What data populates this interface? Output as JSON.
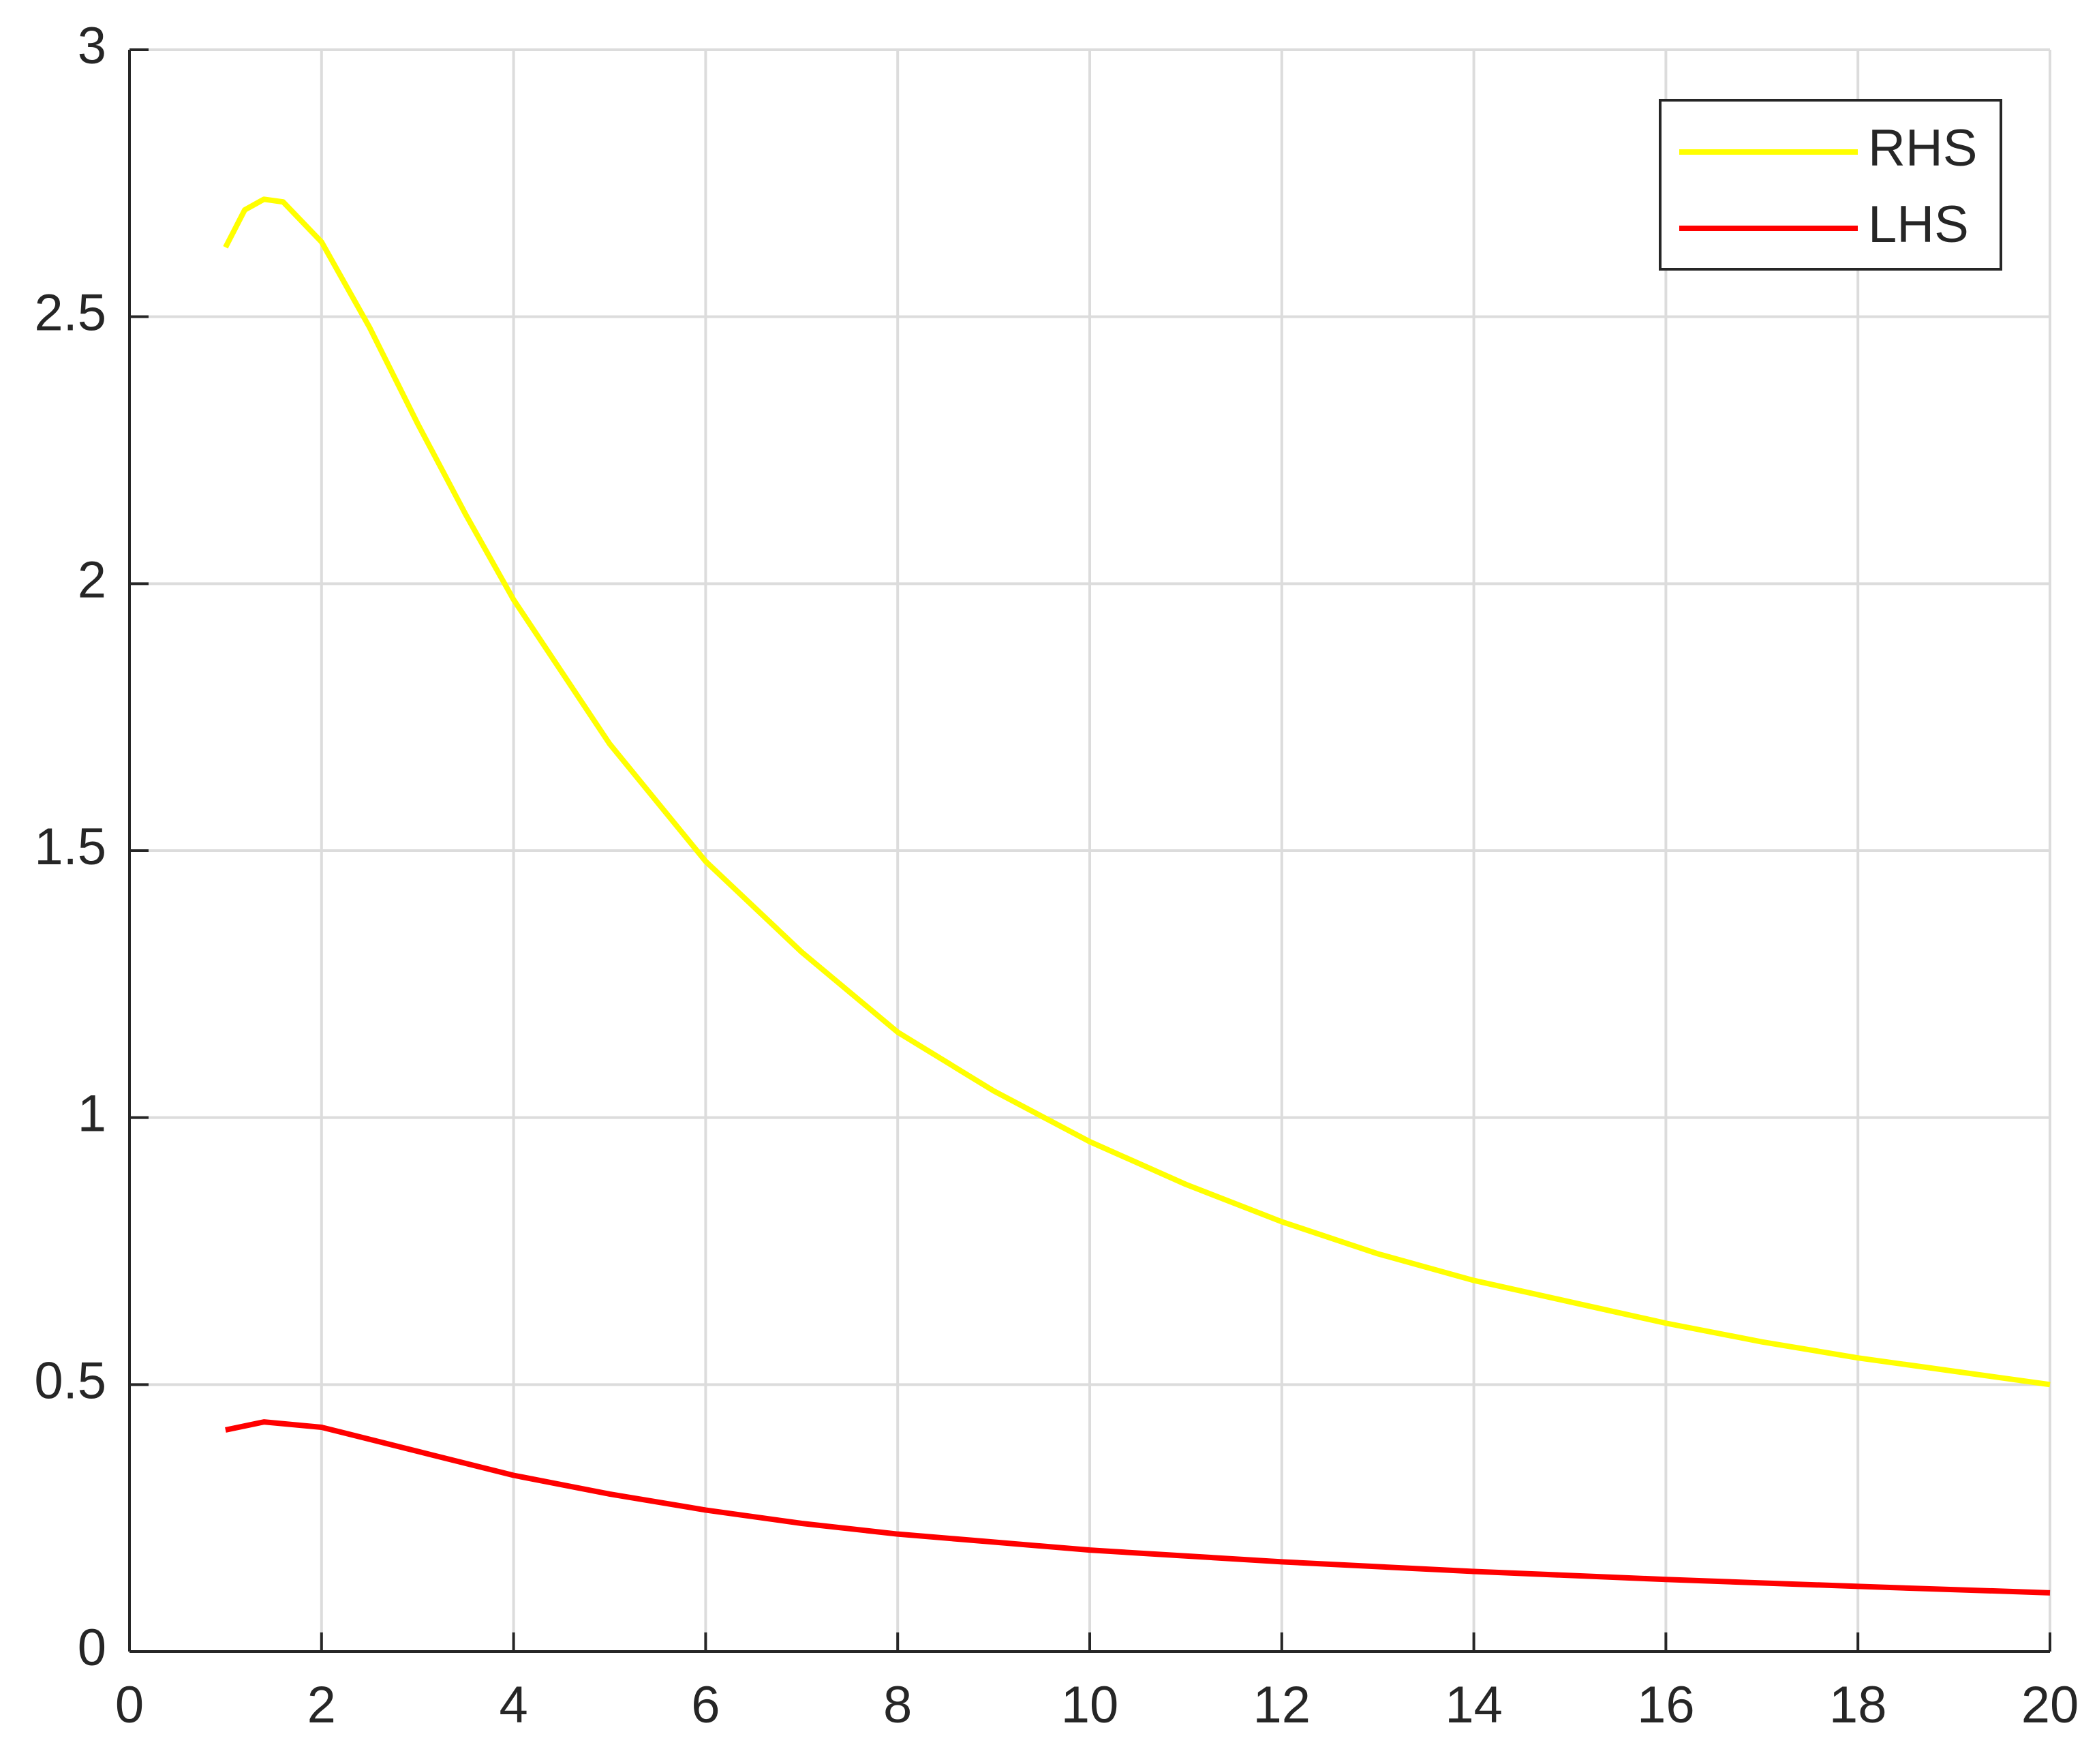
{
  "chart_data": {
    "type": "line",
    "series": [
      {
        "name": "RHS",
        "color": "#ffff00",
        "x": [
          1,
          1.2,
          1.4,
          1.6,
          2,
          2.5,
          3,
          3.5,
          4,
          5,
          6,
          7,
          8,
          9,
          10,
          11,
          12,
          13,
          14,
          15,
          16,
          17,
          18,
          19,
          20
        ],
        "values": [
          2.63,
          2.7,
          2.72,
          2.715,
          2.64,
          2.48,
          2.3,
          2.13,
          1.97,
          1.7,
          1.48,
          1.31,
          1.16,
          1.05,
          0.955,
          0.875,
          0.805,
          0.745,
          0.695,
          0.655,
          0.615,
          0.58,
          0.55,
          0.525,
          0.5
        ]
      },
      {
        "name": "LHS",
        "color": "#ff0000",
        "x": [
          1,
          1.4,
          2,
          3,
          4,
          5,
          6,
          7,
          8,
          9,
          10,
          12,
          14,
          16,
          18,
          20
        ],
        "values": [
          0.415,
          0.43,
          0.42,
          0.375,
          0.33,
          0.295,
          0.265,
          0.24,
          0.22,
          0.205,
          0.19,
          0.168,
          0.15,
          0.135,
          0.122,
          0.11
        ]
      }
    ],
    "xlim": [
      0,
      20
    ],
    "xticks": [
      0,
      2,
      4,
      6,
      8,
      10,
      12,
      14,
      16,
      18,
      20
    ],
    "ylim": [
      0,
      3
    ],
    "yticks": [
      0,
      0.5,
      1,
      1.5,
      2,
      2.5,
      3
    ],
    "grid": true,
    "legend": "top-right"
  }
}
